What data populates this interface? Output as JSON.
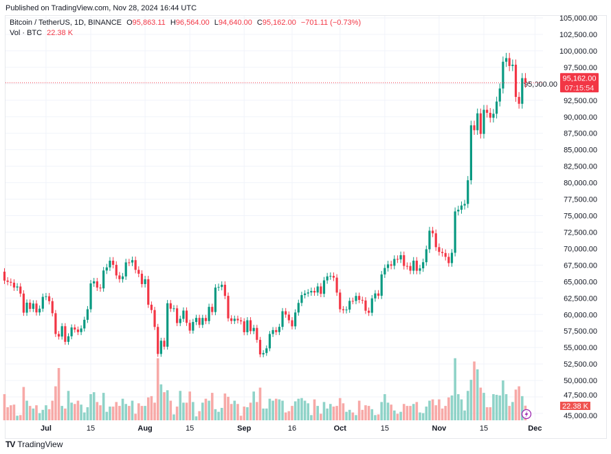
{
  "published": "Published on TradingView.com, Nov 28, 2024 16:44 UTC",
  "legend": {
    "symbol": "Bitcoin / TetherUS, 1D, BINANCE",
    "open_label": "O",
    "open": "95,863.11",
    "high_label": "H",
    "high": "96,564.00",
    "low_label": "L",
    "low": "94,640.00",
    "close_label": "C",
    "close": "95,162.00",
    "change": "−701.11 (−0.73%)",
    "vol_label": "Vol · BTC",
    "vol": "22.38 K"
  },
  "last_price_label": "95,162.00",
  "countdown": "07:15:54",
  "last_volume_label": "22.38 K",
  "brand": "TradingView",
  "colors": {
    "up": "#089981",
    "down": "#F23645",
    "vol_up": "#8fd3c8",
    "vol_down": "#f7a9a7"
  },
  "chart_data": {
    "type": "candlestick",
    "title": "Bitcoin / TetherUS, 1D, BINANCE",
    "start_date": "2024-06-18",
    "end_date": "2024-11-28",
    "ylim": [
      45000,
      105000
    ],
    "y_ticks": [
      "105,000.00",
      "102,500.00",
      "100,000.00",
      "97,500.00",
      "95,000.00",
      "92,500.00",
      "90,000.00",
      "87,500.00",
      "85,000.00",
      "82,500.00",
      "80,000.00",
      "77,500.00",
      "75,000.00",
      "72,500.00",
      "70,000.00",
      "67,500.00",
      "65,000.00",
      "62,500.00",
      "60,000.00",
      "57,500.00",
      "55,000.00",
      "52,500.00",
      "50,000.00",
      "47,500.00",
      "45,000.00"
    ],
    "x_ticks": [
      {
        "label": "Jul",
        "day_index": 13,
        "bold": true
      },
      {
        "label": "15",
        "day_index": 27,
        "bold": false
      },
      {
        "label": "Aug",
        "day_index": 44,
        "bold": true
      },
      {
        "label": "15",
        "day_index": 58,
        "bold": false
      },
      {
        "label": "Sep",
        "day_index": 75,
        "bold": true
      },
      {
        "label": "16",
        "day_index": 90,
        "bold": false
      },
      {
        "label": "Oct",
        "day_index": 105,
        "bold": true
      },
      {
        "label": "15",
        "day_index": 119,
        "bold": false
      },
      {
        "label": "Nov",
        "day_index": 136,
        "bold": true
      },
      {
        "label": "15",
        "day_index": 150,
        "bold": false
      },
      {
        "label": "Dec",
        "day_index": 166,
        "bold": true
      }
    ],
    "first_open": 66500,
    "close": [
      65150,
      64960,
      64830,
      64100,
      64250,
      63180,
      60280,
      61800,
      60860,
      61670,
      60320,
      60890,
      62680,
      62770,
      62030,
      60200,
      57050,
      56660,
      58230,
      55860,
      56700,
      58040,
      57720,
      57340,
      57890,
      59200,
      60800,
      64720,
      65040,
      64090,
      63970,
      66680,
      67150,
      68170,
      67540,
      65930,
      65370,
      65780,
      67910,
      67890,
      68250,
      66780,
      66190,
      64620,
      65350,
      61490,
      60680,
      58120,
      54020,
      56030,
      55120,
      61710,
      60880,
      60940,
      58710,
      59350,
      60600,
      58740,
      57560,
      58870,
      59490,
      58430,
      59480,
      59010,
      61160,
      60380,
      64090,
      64180,
      64520,
      62830,
      59420,
      59030,
      59360,
      59120,
      58970,
      57320,
      59130,
      57480,
      57970,
      56160,
      53950,
      54160,
      54870,
      57050,
      57640,
      57340,
      58130,
      60500,
      59990,
      59130,
      58210,
      60310,
      61760,
      62950,
      63190,
      63350,
      63580,
      63340,
      64260,
      63140,
      65180,
      65790,
      65860,
      65600,
      63330,
      60800,
      60650,
      60750,
      62070,
      62060,
      62820,
      62220,
      62130,
      60580,
      60270,
      62450,
      63200,
      62850,
      66080,
      67060,
      67610,
      67400,
      68430,
      68360,
      69000,
      67370,
      67360,
      66650,
      68170,
      66640,
      67010,
      67940,
      69900,
      72720,
      72320,
      70220,
      69500,
      69330,
      68750,
      67800,
      69370,
      75640,
      75900,
      76540,
      76780,
      80370,
      88700,
      87960,
      90520,
      87400,
      91060,
      90600,
      89850,
      90460,
      92310,
      94290,
      98350,
      98900,
      97700,
      97900,
      93010,
      91970,
      95860,
      95162
    ],
    "volume_k": [
      40,
      20,
      23,
      24,
      7,
      8,
      51,
      30,
      22,
      18,
      23,
      11,
      16,
      23,
      17,
      30,
      52,
      80,
      22,
      18,
      45,
      27,
      25,
      30,
      24,
      12,
      20,
      40,
      43,
      28,
      23,
      42,
      13,
      21,
      21,
      28,
      22,
      33,
      25,
      22,
      30,
      10,
      26,
      22,
      22,
      35,
      37,
      27,
      95,
      55,
      43,
      46,
      30,
      9,
      21,
      45,
      27,
      27,
      44,
      28,
      6,
      14,
      27,
      33,
      30,
      42,
      17,
      13,
      19,
      41,
      36,
      25,
      30,
      25,
      7,
      21,
      20,
      27,
      44,
      28,
      50,
      18,
      18,
      33,
      30,
      33,
      32,
      30,
      12,
      14,
      22,
      29,
      33,
      34,
      30,
      26,
      8,
      32,
      22,
      10,
      28,
      18,
      25,
      21,
      22,
      34,
      26,
      13,
      16,
      12,
      8,
      30,
      16,
      23,
      22,
      17,
      8,
      9,
      28,
      40,
      27,
      24,
      15,
      10,
      13,
      25,
      22,
      22,
      25,
      28,
      12,
      11,
      21,
      30,
      32,
      23,
      32,
      18,
      22,
      35,
      38,
      95,
      40,
      32,
      15,
      45,
      62,
      90,
      78,
      50,
      42,
      20,
      20,
      40,
      39,
      38,
      61,
      40,
      22,
      28,
      47,
      52,
      37,
      22.38
    ]
  }
}
